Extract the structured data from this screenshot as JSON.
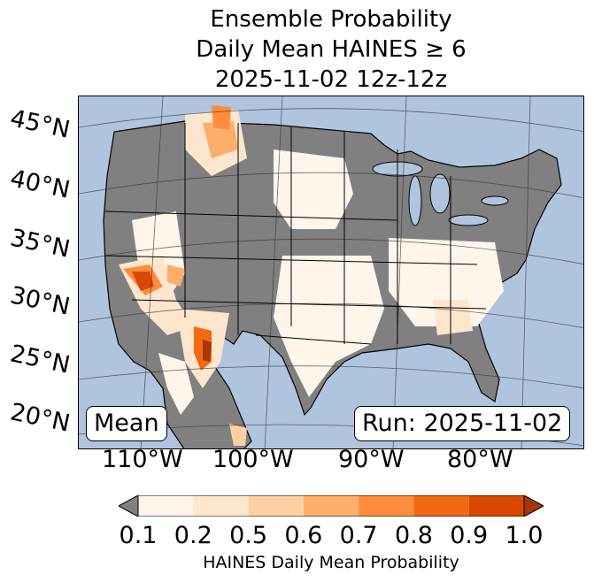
{
  "title": {
    "line1": "Ensemble Probability",
    "line2": "Daily Mean HAINES ≥ 6",
    "line3": "2025-11-02 12z-12z"
  },
  "map": {
    "latitude_labels": [
      "45°N",
      "40°N",
      "35°N",
      "30°N",
      "25°N",
      "20°N"
    ],
    "longitude_labels": [
      "110°W",
      "100°W",
      "90°W",
      "80°W"
    ],
    "stat_box": "Mean",
    "run_box": "Run: 2025-11-02",
    "colors": {
      "ocean": "#b0c4de",
      "land_below_threshold": "#808080"
    }
  },
  "colorbar": {
    "label": "HAINES Daily Mean Probability",
    "ticks": [
      "0.1",
      "0.2",
      "0.5",
      "0.6",
      "0.7",
      "0.8",
      "0.9",
      "1.0"
    ],
    "under_color": "#808080",
    "over_color": "#a63603",
    "colors": [
      "#fff5eb",
      "#fee6ce",
      "#fdd0a2",
      "#fdae6b",
      "#fd8d3c",
      "#f16913",
      "#d94801"
    ]
  }
}
